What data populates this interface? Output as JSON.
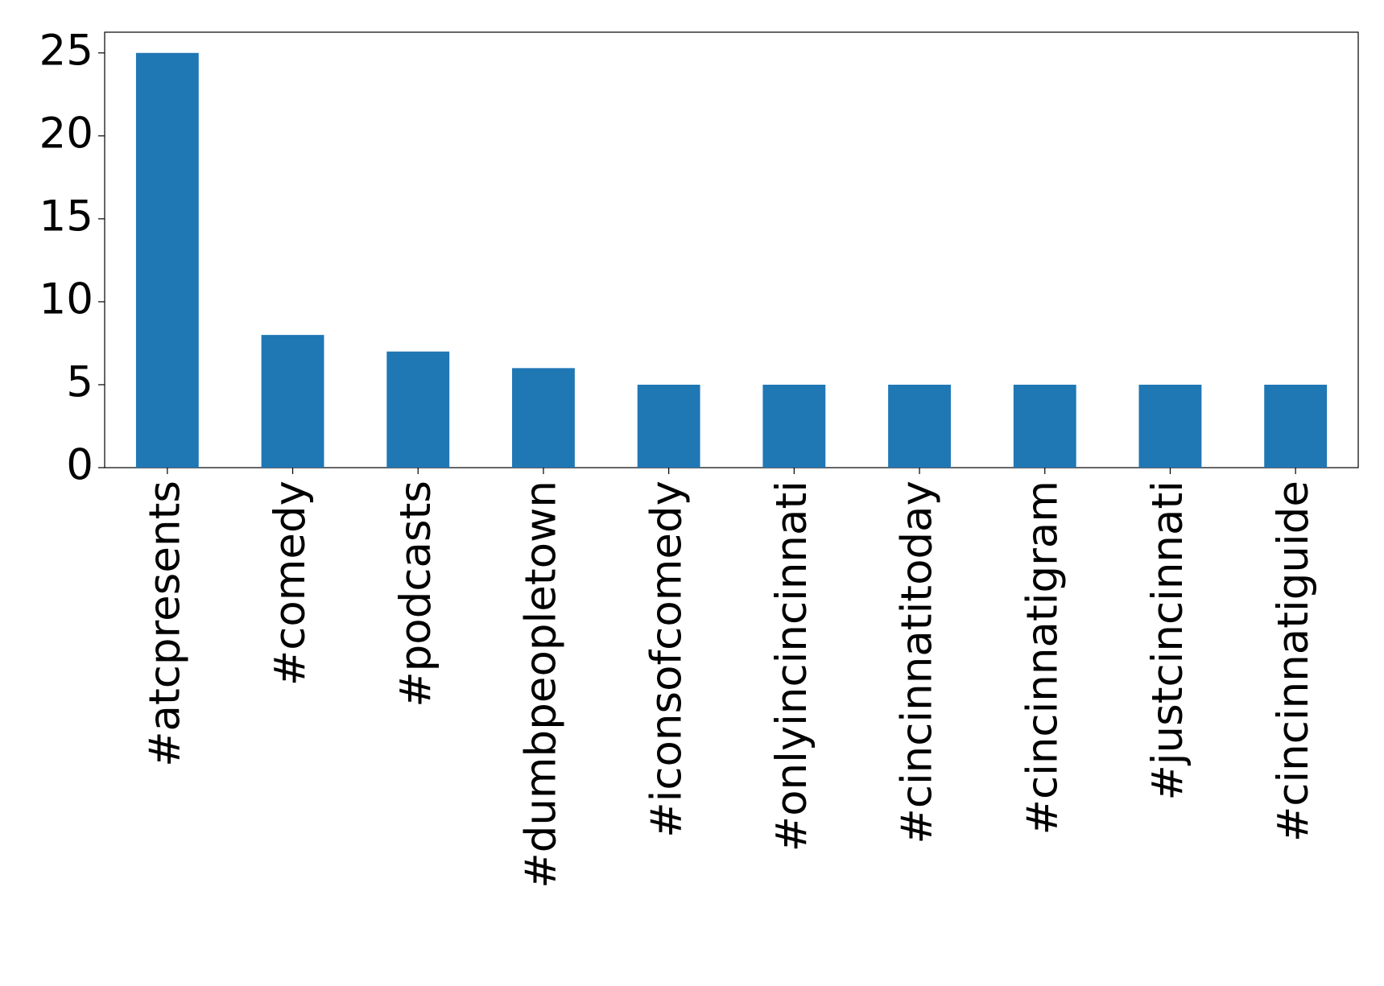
{
  "chart_data": {
    "type": "bar",
    "categories": [
      "#atcpresents",
      "#comedy",
      "#podcasts",
      "#dumbpeopletown",
      "#iconsofcomedy",
      "#onlyincincinnati",
      "#cincinnatitoday",
      "#cincinnatigram",
      "#justcincinnati",
      "#cincinnatiguide"
    ],
    "values": [
      25,
      8,
      7,
      6,
      5,
      5,
      5,
      5,
      5,
      5
    ],
    "color": "#1f77b4",
    "ylim": [
      0,
      26.25
    ],
    "yticks": [
      0,
      5,
      10,
      15,
      20,
      25
    ],
    "grid": false
  }
}
